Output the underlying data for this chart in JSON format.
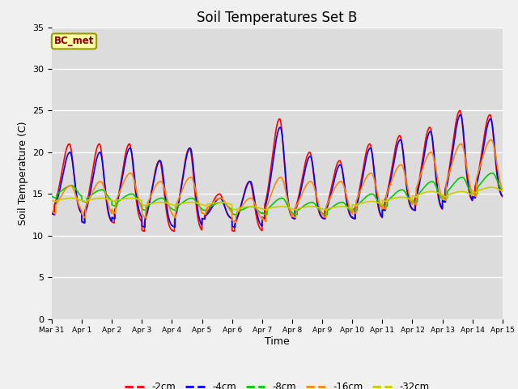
{
  "title": "Soil Temperatures Set B",
  "ylabel": "Soil Temperature (C)",
  "xlabel": "Time",
  "annotation": "BC_met",
  "ylim": [
    0,
    35
  ],
  "series_colors": {
    "-2cm": "#ff0000",
    "-4cm": "#0000ff",
    "-8cm": "#00cc00",
    "-16cm": "#ff8800",
    "-32cm": "#cccc00"
  },
  "xtick_labels": [
    "Mar 31",
    "Apr 1",
    "Apr 2",
    "Apr 3",
    "Apr 4",
    "Apr 5",
    "Apr 6",
    "Apr 7",
    "Apr 8",
    "Apr 9",
    "Apr 10",
    "Apr 11",
    "Apr 12",
    "Apr 13",
    "Apr 14",
    "Apr 15"
  ],
  "grid_color": "#ffffff",
  "fig_bg": "#e8e8e8",
  "plot_bg": "#dcdcdc",
  "legend_labels": [
    "-2cm",
    "-4cm",
    "-8cm",
    "-16cm",
    "-32cm"
  ],
  "legend_colors": [
    "#ff0000",
    "#0000ff",
    "#00cc00",
    "#ff8800",
    "#cccc00"
  ]
}
